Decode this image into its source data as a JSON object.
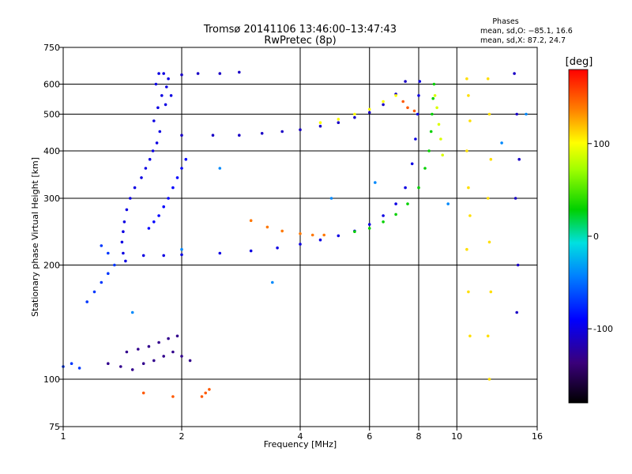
{
  "chart_data": {
    "type": "scatter",
    "title": "Tromsø 20141106 13:46:00–13:47:43",
    "subtitle": "RwPretec (8p)",
    "xlabel": "Frequency [MHz]",
    "ylabel": "Stationary phase Virtual Height [km]",
    "x_scale": "log",
    "y_scale": "log",
    "xlim": [
      1,
      16
    ],
    "ylim": [
      75,
      750
    ],
    "x_ticks": [
      1,
      2,
      4,
      6,
      8,
      10,
      16
    ],
    "x_tick_labels": [
      "1",
      "2",
      "4",
      "6",
      "8",
      "10",
      "16"
    ],
    "y_ticks": [
      75,
      100,
      200,
      300,
      400,
      500,
      600,
      750
    ],
    "y_tick_labels": [
      "75",
      "100",
      "200",
      "300",
      "400",
      "500",
      "600",
      "750"
    ],
    "grid": true,
    "phase_box": {
      "title": "Phases",
      "line_o": "mean, sd,O: −85.1, 16.6",
      "line_x": "mean, sd,X:  87.2, 24.7"
    },
    "colorbar": {
      "label": "[deg]",
      "range": [
        -180,
        180
      ],
      "ticks": [
        -100,
        0,
        100
      ],
      "tick_labels": [
        "-100",
        "0",
        "100"
      ]
    },
    "series": [
      {
        "phase": -100,
        "points": [
          [
            1.75,
            640
          ],
          [
            1.72,
            600
          ],
          [
            1.78,
            560
          ],
          [
            1.74,
            520
          ],
          [
            1.7,
            480
          ],
          [
            1.76,
            450
          ],
          [
            1.73,
            420
          ],
          [
            1.69,
            400
          ],
          [
            1.66,
            380
          ],
          [
            1.62,
            360
          ],
          [
            1.58,
            340
          ],
          [
            1.52,
            320
          ],
          [
            1.48,
            300
          ],
          [
            1.45,
            280
          ],
          [
            1.43,
            260
          ],
          [
            1.42,
            245
          ],
          [
            1.41,
            230
          ],
          [
            1.42,
            215
          ],
          [
            1.44,
            205
          ],
          [
            1.8,
            640
          ],
          [
            1.85,
            620
          ],
          [
            1.83,
            590
          ],
          [
            1.88,
            560
          ],
          [
            1.82,
            530
          ]
        ]
      },
      {
        "phase": -110,
        "points": [
          [
            2.0,
            635
          ],
          [
            2.2,
            640
          ],
          [
            2.5,
            640
          ],
          [
            2.8,
            645
          ],
          [
            2.0,
            440
          ],
          [
            2.4,
            440
          ],
          [
            2.8,
            440
          ],
          [
            3.2,
            445
          ],
          [
            3.6,
            450
          ],
          [
            4.0,
            455
          ],
          [
            4.5,
            465
          ],
          [
            5.0,
            475
          ],
          [
            5.5,
            490
          ],
          [
            6.0,
            505
          ],
          [
            6.5,
            530
          ],
          [
            7.0,
            565
          ],
          [
            7.4,
            610
          ]
        ]
      },
      {
        "phase": -100,
        "points": [
          [
            1.6,
            212
          ],
          [
            1.8,
            212
          ],
          [
            2.0,
            213
          ],
          [
            2.5,
            215
          ],
          [
            3.0,
            218
          ],
          [
            3.5,
            222
          ],
          [
            4.0,
            227
          ],
          [
            4.5,
            233
          ],
          [
            5.0,
            239
          ],
          [
            5.5,
            246
          ],
          [
            6.0,
            256
          ],
          [
            6.5,
            270
          ],
          [
            7.0,
            290
          ],
          [
            7.4,
            320
          ],
          [
            7.7,
            370
          ],
          [
            7.85,
            430
          ],
          [
            7.95,
            500
          ],
          [
            8.0,
            560
          ],
          [
            8.05,
            610
          ]
        ]
      },
      {
        "phase": -90,
        "points": [
          [
            1.65,
            250
          ],
          [
            1.7,
            260
          ],
          [
            1.75,
            270
          ],
          [
            1.8,
            285
          ],
          [
            1.85,
            300
          ],
          [
            1.9,
            320
          ],
          [
            1.95,
            340
          ],
          [
            2.0,
            360
          ],
          [
            2.05,
            380
          ]
        ]
      },
      {
        "phase": 30,
        "points": [
          [
            5.5,
            245
          ],
          [
            6.0,
            250
          ],
          [
            6.5,
            260
          ],
          [
            7.0,
            272
          ],
          [
            7.5,
            290
          ],
          [
            8.0,
            320
          ],
          [
            8.3,
            360
          ],
          [
            8.5,
            400
          ],
          [
            8.6,
            450
          ],
          [
            8.65,
            500
          ],
          [
            8.7,
            550
          ],
          [
            8.75,
            600
          ]
        ]
      },
      {
        "phase": 140,
        "points": [
          [
            3.0,
            262
          ],
          [
            3.3,
            252
          ],
          [
            3.6,
            246
          ],
          [
            4.0,
            242
          ],
          [
            4.3,
            240
          ],
          [
            4.6,
            240
          ]
        ]
      },
      {
        "phase": 100,
        "points": [
          [
            4.5,
            475
          ],
          [
            5.0,
            485
          ],
          [
            5.5,
            500
          ],
          [
            6.0,
            515
          ],
          [
            6.5,
            540
          ],
          [
            7.0,
            560
          ]
        ]
      },
      {
        "phase": 150,
        "points": [
          [
            7.3,
            540
          ],
          [
            7.5,
            520
          ],
          [
            7.8,
            510
          ]
        ]
      },
      {
        "phase": -130,
        "points": [
          [
            1.3,
            110
          ],
          [
            1.4,
            108
          ],
          [
            1.5,
            106
          ],
          [
            1.6,
            110
          ],
          [
            1.7,
            112
          ],
          [
            1.8,
            115
          ],
          [
            1.9,
            118
          ],
          [
            2.0,
            115
          ],
          [
            2.1,
            112
          ],
          [
            1.45,
            118
          ],
          [
            1.55,
            120
          ],
          [
            1.65,
            122
          ],
          [
            1.75,
            125
          ],
          [
            1.85,
            128
          ],
          [
            1.95,
            130
          ]
        ]
      },
      {
        "phase": -70,
        "points": [
          [
            1.0,
            108
          ],
          [
            1.05,
            110
          ],
          [
            1.1,
            107
          ],
          [
            1.15,
            160
          ],
          [
            1.2,
            170
          ],
          [
            1.25,
            180
          ],
          [
            1.3,
            190
          ],
          [
            1.35,
            200
          ],
          [
            1.3,
            215
          ],
          [
            1.25,
            225
          ]
        ]
      },
      {
        "phase": 150,
        "points": [
          [
            2.25,
            90
          ],
          [
            2.3,
            92
          ],
          [
            2.35,
            94
          ],
          [
            1.9,
            90
          ],
          [
            1.6,
            92
          ]
        ]
      },
      {
        "phase": 110,
        "points": [
          [
            10.6,
            620
          ],
          [
            10.7,
            560
          ],
          [
            10.8,
            480
          ],
          [
            10.6,
            400
          ],
          [
            10.7,
            320
          ],
          [
            10.8,
            270
          ],
          [
            10.6,
            220
          ],
          [
            10.7,
            170
          ],
          [
            10.8,
            130
          ],
          [
            12.0,
            620
          ],
          [
            12.1,
            500
          ],
          [
            12.2,
            380
          ],
          [
            12.0,
            300
          ],
          [
            12.1,
            230
          ],
          [
            12.2,
            170
          ],
          [
            12.0,
            130
          ],
          [
            12.1,
            100
          ]
        ]
      },
      {
        "phase": -110,
        "points": [
          [
            14.0,
            640
          ],
          [
            14.2,
            500
          ],
          [
            14.4,
            380
          ],
          [
            14.1,
            300
          ],
          [
            14.3,
            200
          ],
          [
            14.2,
            150
          ]
        ]
      },
      {
        "phase": 90,
        "points": [
          [
            8.8,
            560
          ],
          [
            8.9,
            520
          ],
          [
            9.0,
            470
          ],
          [
            9.1,
            430
          ],
          [
            9.2,
            390
          ]
        ]
      },
      {
        "phase": -40,
        "points": [
          [
            1.5,
            150
          ],
          [
            2.0,
            220
          ],
          [
            2.5,
            360
          ],
          [
            3.4,
            180
          ],
          [
            4.8,
            300
          ],
          [
            6.2,
            330
          ],
          [
            9.5,
            290
          ],
          [
            13.0,
            420
          ],
          [
            15.0,
            500
          ]
        ]
      }
    ]
  }
}
